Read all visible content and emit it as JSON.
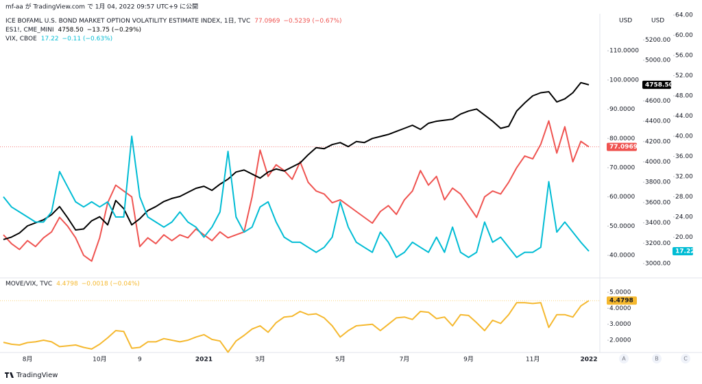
{
  "header": "mf-aa が TradingView.com で 1月 04, 2022 09:57 UTC+9 に公開",
  "currency": "USD",
  "scale_buttons": [
    "A",
    "B",
    "C"
  ],
  "brand": "TradingView",
  "chart_data": [
    {
      "type": "line",
      "series": [
        {
          "name": "ICE BOFAML U.S. BOND MARKET OPTION VOLATILITY ESTIMATE INDEX, 1日, TVC",
          "color": "#ef5350",
          "change": "−0.5239 (−0.67%)",
          "ylim": [
            32.5,
            122.7
          ],
          "yticks": [
            {
              "value": 40,
              "label": "40.0000"
            },
            {
              "value": 50,
              "label": "50.0000"
            },
            {
              "value": 60,
              "label": "60.0000"
            },
            {
              "value": 70,
              "label": "70.0000"
            },
            {
              "value": 80,
              "label": "80.0000"
            },
            {
              "value": 90,
              "label": "90.0000"
            },
            {
              "value": 100,
              "label": "100.0000"
            },
            {
              "value": 110,
              "label": "110.0000"
            }
          ],
          "values": [
            47,
            44,
            42,
            45,
            43,
            46,
            48,
            53,
            50,
            46,
            40,
            38,
            46,
            58,
            64,
            62,
            60,
            43,
            46,
            44,
            47,
            45,
            47,
            46,
            49,
            47,
            45,
            48,
            46,
            47,
            48,
            60,
            76,
            67,
            71,
            69,
            66,
            72,
            65,
            62,
            61,
            58,
            59,
            57,
            55,
            53,
            51,
            55,
            57,
            54,
            59,
            62,
            69,
            64,
            67,
            59,
            63,
            61,
            57,
            53,
            60,
            62,
            61,
            65,
            70,
            74,
            73,
            78,
            86,
            75,
            84,
            72,
            79,
            77.0969
          ]
        },
        {
          "name": "ES1!, CME_MINI",
          "color": "#000000",
          "last_label": "4758.50",
          "change": "−13.75 (−0.29%)",
          "ylim": [
            2865,
            5458
          ],
          "yticks": [
            {
              "value": 3000,
              "label": "3000.00"
            },
            {
              "value": 3200,
              "label": "3200.00"
            },
            {
              "value": 3400,
              "label": "3400.00"
            },
            {
              "value": 3600,
              "label": "3600.00"
            },
            {
              "value": 3800,
              "label": "3800.00"
            },
            {
              "value": 4000,
              "label": "4000.00"
            },
            {
              "value": 4200,
              "label": "4200.00"
            },
            {
              "value": 4400,
              "label": "4400.00"
            },
            {
              "value": 4600,
              "label": "4600.00"
            },
            {
              "value": 5000,
              "label": "5000.00"
            },
            {
              "value": 5200,
              "label": "5200.00"
            }
          ],
          "values": [
            3236,
            3260,
            3300,
            3370,
            3400,
            3430,
            3480,
            3560,
            3450,
            3330,
            3340,
            3420,
            3460,
            3380,
            3620,
            3540,
            3380,
            3440,
            3520,
            3560,
            3610,
            3640,
            3660,
            3700,
            3740,
            3760,
            3720,
            3780,
            3830,
            3900,
            3920,
            3880,
            3840,
            3900,
            3930,
            3910,
            3950,
            3990,
            4070,
            4140,
            4130,
            4170,
            4190,
            4150,
            4200,
            4190,
            4230,
            4250,
            4270,
            4300,
            4330,
            4360,
            4320,
            4380,
            4400,
            4410,
            4420,
            4470,
            4500,
            4520,
            4460,
            4400,
            4330,
            4350,
            4500,
            4580,
            4650,
            4680,
            4690,
            4590,
            4620,
            4680,
            4780,
            4758.5
          ]
        },
        {
          "name": "VIX, CBOE",
          "color": "#00bcd4",
          "change": "−0.11 (−0.63%)",
          "ylim": [
            12.07,
            64.27
          ],
          "yticks": [
            {
              "value": 20,
              "label": "20.00"
            },
            {
              "value": 24,
              "label": "24.00"
            },
            {
              "value": 28,
              "label": "28.00"
            },
            {
              "value": 32,
              "label": "32.00"
            },
            {
              "value": 36,
              "label": "36.00"
            },
            {
              "value": 40,
              "label": "40.00"
            },
            {
              "value": 44,
              "label": "44.00"
            },
            {
              "value": 48,
              "label": "48.00"
            },
            {
              "value": 52,
              "label": "52.00"
            },
            {
              "value": 56,
              "label": "56.00"
            },
            {
              "value": 60,
              "label": "60.00"
            },
            {
              "value": 64,
              "label": "64.00"
            }
          ],
          "values": [
            28,
            26,
            25,
            24,
            23,
            23,
            25,
            33,
            30,
            27,
            26,
            27,
            26,
            27,
            24,
            24,
            40,
            28,
            24,
            23,
            22,
            23,
            25,
            23,
            22,
            20,
            22,
            25,
            37,
            24,
            21,
            22,
            26,
            27,
            23,
            20,
            19,
            19,
            18,
            17,
            18,
            20,
            27,
            22,
            19,
            18,
            17,
            21,
            19,
            16,
            17,
            19,
            18,
            17,
            20,
            17,
            22,
            17,
            16,
            17,
            23,
            19,
            20,
            18,
            16,
            17,
            17,
            18,
            31,
            21,
            23,
            21,
            19,
            17.22
          ]
        }
      ]
    },
    {
      "type": "line",
      "categories": [
        null,
        null,
        null,
        "8月",
        null,
        null,
        null,
        null,
        null,
        null,
        null,
        null,
        "10月",
        null,
        null,
        null,
        null,
        "9",
        null,
        null,
        null,
        null,
        null,
        null,
        null,
        "2021",
        null,
        null,
        null,
        null,
        null,
        null,
        "3月",
        null,
        null,
        null,
        null,
        null,
        null,
        null,
        null,
        null,
        "5月",
        null,
        null,
        null,
        null,
        null,
        null,
        null,
        "7月",
        null,
        null,
        null,
        null,
        null,
        null,
        null,
        "9月",
        null,
        null,
        null,
        null,
        null,
        null,
        null,
        "11月",
        null,
        null,
        null,
        null,
        null,
        null,
        "2022"
      ],
      "series": [
        {
          "name": "MOVE/VIX, TVC",
          "color": "#f5b82e",
          "change": "−0.0018 (−0.04%)",
          "ylim": [
            1.23,
            5.73
          ],
          "yticks": [
            {
              "value": 2,
              "label": "2.0000"
            },
            {
              "value": 3,
              "label": "3.0000"
            },
            {
              "value": 4,
              "label": "4.0000"
            },
            {
              "value": 5,
              "label": "5.0000"
            }
          ],
          "values": [
            1.87,
            1.75,
            1.7,
            1.85,
            1.9,
            2.0,
            1.9,
            1.6,
            1.65,
            1.7,
            1.55,
            1.45,
            1.75,
            2.15,
            2.6,
            2.55,
            1.5,
            1.55,
            1.9,
            1.9,
            2.1,
            2.0,
            1.9,
            2.0,
            2.2,
            2.35,
            2.05,
            1.95,
            1.25,
            1.95,
            2.3,
            2.7,
            2.9,
            2.5,
            3.1,
            3.45,
            3.5,
            3.8,
            3.6,
            3.65,
            3.4,
            2.9,
            2.2,
            2.6,
            2.9,
            2.95,
            3.0,
            2.6,
            3.0,
            3.4,
            3.45,
            3.3,
            3.8,
            3.75,
            3.35,
            3.45,
            2.9,
            3.6,
            3.55,
            3.1,
            2.6,
            3.25,
            3.05,
            3.6,
            4.35,
            4.35,
            4.3,
            4.35,
            2.8,
            3.6,
            3.6,
            3.45,
            4.15,
            4.4798
          ]
        }
      ]
    }
  ]
}
